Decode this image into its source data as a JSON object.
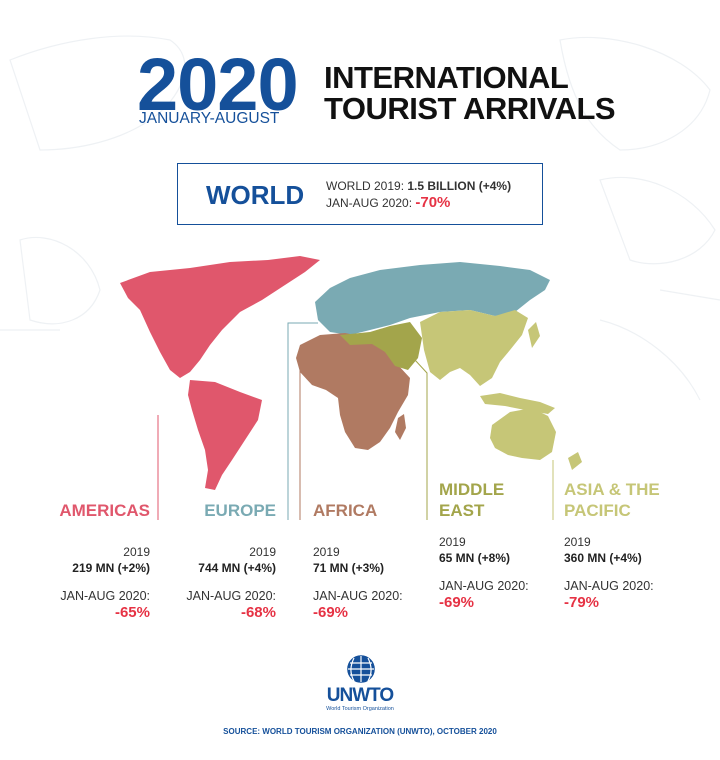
{
  "header": {
    "year": "2020",
    "period": "JANUARY-AUGUST",
    "title_line1": "INTERNATIONAL",
    "title_line2": "TOURIST ARRIVALS"
  },
  "world": {
    "label": "WORLD",
    "line1_prefix": "WORLD 2019: ",
    "line1_value": "1.5 BILLION (+4%)",
    "line2_prefix": "JAN-AUG 2020: ",
    "line2_value": "-70%"
  },
  "regions": [
    {
      "name": "AMERICAS",
      "name_line2": "",
      "color": "#e0576c",
      "year": "2019",
      "value": "219 MN (+2%)",
      "jan_label": "JAN-AUG 2020:",
      "pct": "-65%"
    },
    {
      "name": "EUROPE",
      "name_line2": "",
      "color": "#7aaab3",
      "year": "2019",
      "value": "744 MN (+4%)",
      "jan_label": "JAN-AUG 2020:",
      "pct": "-68%"
    },
    {
      "name": "AFRICA",
      "name_line2": "",
      "color": "#b07a62",
      "year": "2019",
      "value": "71 MN (+3%)",
      "jan_label": "JAN-AUG 2020:",
      "pct": "-69%"
    },
    {
      "name": "MIDDLE",
      "name_line2": "EAST",
      "color": "#a3a54b",
      "year": "2019",
      "value": "65 MN (+8%)",
      "jan_label": "JAN-AUG 2020:",
      "pct": "-69%"
    },
    {
      "name": "ASIA & THE",
      "name_line2": "PACIFIC",
      "color": "#c6c677",
      "year": "2019",
      "value": "360 MN (+4%)",
      "jan_label": "JAN-AUG 2020:",
      "pct": "-79%"
    }
  ],
  "logo": {
    "name": "UNWTO",
    "subtitle": "World Tourism Organization"
  },
  "source": "SOURCE: WORLD TOURISM ORGANIZATION (UNWTO), OCTOBER 2020",
  "colors": {
    "brand_blue": "#15509a",
    "negative_red": "#e63244",
    "americas": "#e0576c",
    "europe": "#7aaab3",
    "africa": "#b07a62",
    "middle_east": "#a3a54b",
    "asia_pacific": "#c6c677"
  }
}
